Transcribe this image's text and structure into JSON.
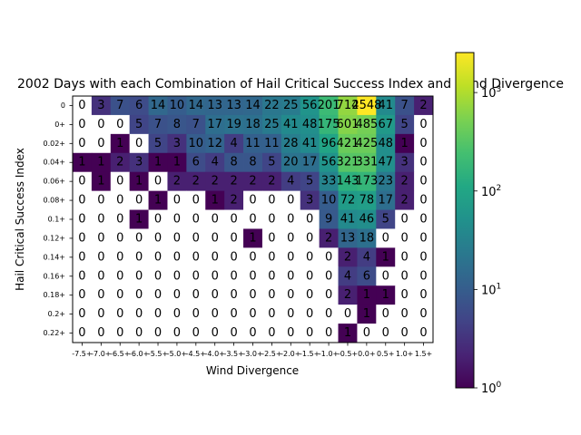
{
  "chart_data": {
    "type": "heatmap",
    "title": "2002 Days with each Combination of Hail Critical Success Index and Wind Divergence",
    "xlabel": "Wind Divergence",
    "ylabel": "Hail Critical Success Index",
    "x_categories": [
      "-7.5+",
      "-7.0+",
      "-6.5+",
      "-6.0+",
      "-5.5+",
      "-5.0+",
      "-4.5+",
      "-4.0+",
      "-3.5+",
      "-3.0+",
      "-2.5+",
      "-2.0+",
      "-1.5+",
      "-1.0+",
      "-0.5+",
      "0.0+",
      "0.5+",
      "1.0+",
      "1.5+"
    ],
    "y_categories": [
      "0",
      "0+",
      "0.02+",
      "0.04+",
      "0.06+",
      "0.08+",
      "0.1+",
      "0.12+",
      "0.14+",
      "0.16+",
      "0.18+",
      "0.2+",
      "0.22+"
    ],
    "values": [
      [
        0,
        3,
        7,
        6,
        14,
        10,
        14,
        13,
        13,
        14,
        22,
        25,
        56,
        201,
        714,
        2548,
        41,
        7,
        2
      ],
      [
        0,
        0,
        0,
        5,
        7,
        8,
        7,
        17,
        19,
        18,
        25,
        41,
        48,
        175,
        601,
        485,
        67,
        5,
        0
      ],
      [
        0,
        0,
        1,
        0,
        5,
        3,
        10,
        12,
        4,
        11,
        11,
        28,
        41,
        96,
        421,
        425,
        48,
        1,
        0
      ],
      [
        1,
        1,
        2,
        3,
        1,
        1,
        6,
        4,
        8,
        8,
        5,
        20,
        17,
        56,
        321,
        331,
        47,
        3,
        0
      ],
      [
        0,
        1,
        0,
        1,
        0,
        2,
        2,
        2,
        2,
        2,
        2,
        4,
        5,
        33,
        143,
        173,
        23,
        2,
        0
      ],
      [
        0,
        0,
        0,
        0,
        1,
        0,
        0,
        1,
        2,
        0,
        0,
        0,
        3,
        10,
        72,
        78,
        17,
        2,
        0
      ],
      [
        0,
        0,
        0,
        1,
        0,
        0,
        0,
        0,
        0,
        0,
        0,
        0,
        0,
        9,
        41,
        46,
        5,
        0,
        0
      ],
      [
        0,
        0,
        0,
        0,
        0,
        0,
        0,
        0,
        0,
        1,
        0,
        0,
        0,
        2,
        13,
        18,
        0,
        0,
        0
      ],
      [
        0,
        0,
        0,
        0,
        0,
        0,
        0,
        0,
        0,
        0,
        0,
        0,
        0,
        0,
        2,
        4,
        1,
        0,
        0
      ],
      [
        0,
        0,
        0,
        0,
        0,
        0,
        0,
        0,
        0,
        0,
        0,
        0,
        0,
        0,
        4,
        6,
        0,
        0,
        0
      ],
      [
        0,
        0,
        0,
        0,
        0,
        0,
        0,
        0,
        0,
        0,
        0,
        0,
        0,
        0,
        2,
        1,
        1,
        0,
        0
      ],
      [
        0,
        0,
        0,
        0,
        0,
        0,
        0,
        0,
        0,
        0,
        0,
        0,
        0,
        0,
        0,
        1,
        0,
        0,
        0
      ],
      [
        0,
        0,
        0,
        0,
        0,
        0,
        0,
        0,
        0,
        0,
        0,
        0,
        0,
        0,
        1,
        0,
        0,
        0,
        0
      ]
    ],
    "colorscale": "viridis",
    "color_scale_type": "log",
    "zero_color": "#ffffff",
    "colorbar_range": [
      1,
      2548
    ],
    "colorbar_ticks": [
      {
        "value": 1,
        "base": "10",
        "exp": "0"
      },
      {
        "value": 10,
        "base": "10",
        "exp": "1"
      },
      {
        "value": 100,
        "base": "10",
        "exp": "2"
      },
      {
        "value": 1000,
        "base": "10",
        "exp": "3"
      }
    ],
    "grid": false
  }
}
